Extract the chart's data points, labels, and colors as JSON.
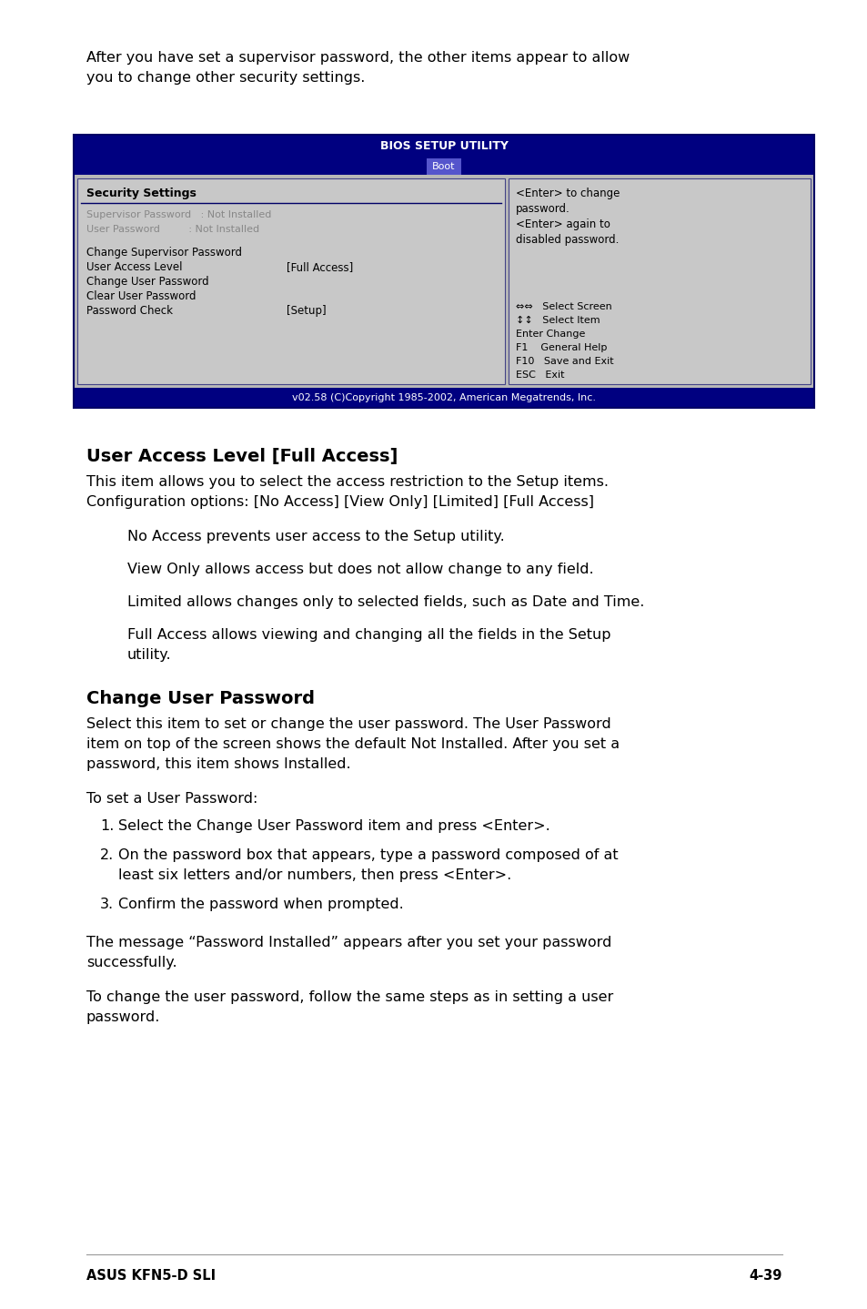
{
  "page_bg": "#ffffff",
  "top_margin_text1": "After you have set a supervisor password, the other items appear to allow",
  "top_margin_text2": "you to change other security settings.",
  "bios_header_bg": "#000080",
  "bios_header_text": "BIOS SETUP UTILITY",
  "bios_tab_text": "Boot",
  "bios_body_bg": "#aaaaaa",
  "bios_panel_bg": "#c0c0c0",
  "bios_border_color": "#000066",
  "section_title": "Security Settings",
  "left_items_gray": [
    "Supervisor Password   : Not Installed",
    "User Password         : Not Installed"
  ],
  "left_items_black": [
    "Change Supervisor Password",
    "User Access Level",
    "Change User Password",
    "Clear User Password",
    "Password Check"
  ],
  "left_items_values": {
    "User Access Level": "[Full Access]",
    "Password Check": "[Setup]"
  },
  "right_top_text": "<Enter> to change\npassword.\n<Enter> again to\ndisabled password.",
  "right_key_lines": [
    "⇔⇔   Select Screen",
    "↕↕   Select Item",
    "Enter Change",
    "F1    General Help",
    "F10   Save and Exit",
    "ESC   Exit"
  ],
  "footer_text": "v02.58 (C)Copyright 1985-2002, American Megatrends, Inc.",
  "section1_heading": "User Access Level [Full Access]",
  "section1_body": "This item allows you to select the access restriction to the Setup items.\nConfiguration options: [No Access] [View Only] [Limited] [Full Access]",
  "section1_bullets": [
    "No Access prevents user access to the Setup utility.",
    "View Only allows access but does not allow change to any field.",
    "Limited allows changes only to selected fields, such as Date and Time.",
    "Full Access allows viewing and changing all the fields in the Setup\nutility."
  ],
  "section2_heading": "Change User Password",
  "section2_body1": "Select this item to set or change the user password. The User Password\nitem on top of the screen shows the default Not Installed. After you set a\npassword, this item shows Installed.",
  "section2_body2": "To set a User Password:",
  "section2_list": [
    "Select the Change User Password item and press <Enter>.",
    "On the password box that appears, type a password composed of at\nleast six letters and/or numbers, then press <Enter>.",
    "Confirm the password when prompted."
  ],
  "section2_body3": "The message “Password Installed” appears after you set your password\nsuccessfully.",
  "section2_body4": "To change the user password, follow the same steps as in setting a user\npassword.",
  "footer_left": "ASUS KFN5-D SLI",
  "footer_right": "4-39"
}
